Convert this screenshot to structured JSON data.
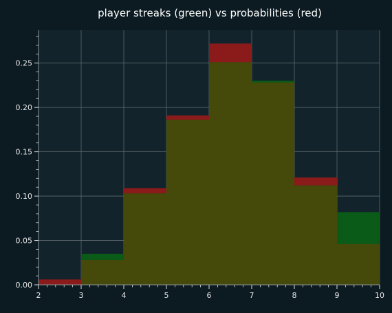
{
  "chart_data": {
    "type": "bar",
    "title": "player streaks (green) vs probabilities (red)",
    "xlabel": "",
    "ylabel": "",
    "xlim": [
      2,
      10
    ],
    "ylim": [
      0,
      0.287
    ],
    "x_ticks": [
      2,
      3,
      4,
      5,
      6,
      7,
      8,
      9,
      10
    ],
    "y_ticks": [
      0.0,
      0.05,
      0.1,
      0.15,
      0.2,
      0.25
    ],
    "y_tick_labels": [
      "0.00",
      "0.05",
      "0.10",
      "0.15",
      "0.20",
      "0.25"
    ],
    "grid": true,
    "bins": [
      [
        2,
        3
      ],
      [
        3,
        4
      ],
      [
        4,
        5
      ],
      [
        5,
        6
      ],
      [
        6,
        7
      ],
      [
        7,
        8
      ],
      [
        8,
        9
      ],
      [
        9,
        10
      ]
    ],
    "series": [
      {
        "color": "#8b1a1a",
        "values": [
          0.006,
          0.028,
          0.109,
          0.191,
          0.272,
          0.228,
          0.121,
          0.046
        ]
      },
      {
        "color": "#0a5a18",
        "values": [
          0.0,
          0.035,
          0.103,
          0.186,
          0.251,
          0.23,
          0.112,
          0.082
        ]
      }
    ],
    "overlap_color": "#454a0a",
    "colors": {
      "background": "#0c1b22",
      "plot_background": "#12232b",
      "grid": "#5e6a6e",
      "axis": "#8a9498"
    }
  }
}
